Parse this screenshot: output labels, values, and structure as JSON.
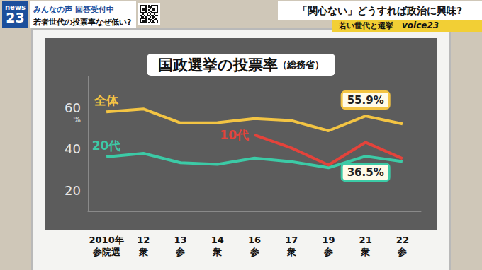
{
  "screen": {
    "logo": [
      "news",
      "23"
    ],
    "header_left": [
      "みんなの声 回答受付中",
      "若者世代の投票率なぜ低い?"
    ],
    "header_right": "「関心ない」どうすれば政治に興味?",
    "strip": [
      "若い世代と選挙",
      "voice23"
    ]
  },
  "chart_data": {
    "type": "line",
    "title": "国政選挙の投票率",
    "subtitle": "（総務省）",
    "ylabel": "%",
    "categories": [
      "2010年\n参院選",
      "12\n衆",
      "13\n参",
      "14\n衆",
      "16\n参",
      "17\n衆",
      "19\n参",
      "21\n衆",
      "22\n参"
    ],
    "series": [
      {
        "name": "全体",
        "color": "#f3c443",
        "values": [
          57.9,
          59.3,
          52.6,
          52.7,
          54.7,
          53.7,
          48.8,
          55.9,
          52.1
        ],
        "value_labels": [
          null,
          null,
          null,
          null,
          null,
          null,
          null,
          "55.9%",
          null
        ]
      },
      {
        "name": "20代",
        "color": "#3ccaa6",
        "values": [
          36.2,
          37.9,
          33.4,
          32.6,
          35.6,
          33.9,
          31.0,
          36.5,
          34.0
        ],
        "value_labels": [
          null,
          null,
          null,
          null,
          null,
          null,
          null,
          "36.5%",
          null
        ]
      },
      {
        "name": "10代",
        "color": "#e4433b",
        "values": [
          null,
          null,
          null,
          null,
          46.8,
          40.5,
          32.3,
          43.2,
          35.4
        ]
      }
    ],
    "ylim": [
      10,
      75
    ],
    "yticks": [
      20,
      40,
      60
    ],
    "grid": false
  }
}
